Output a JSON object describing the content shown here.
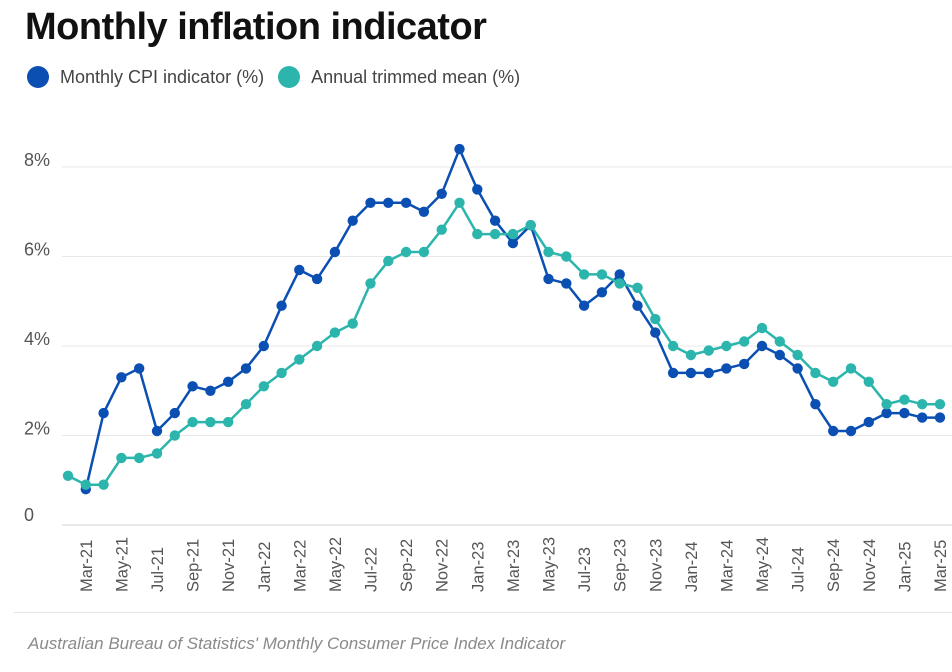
{
  "title": "Monthly inflation indicator",
  "legend": {
    "items": [
      {
        "label": "Monthly CPI indicator (%)",
        "color": "#0b4fb3"
      },
      {
        "label": "Annual trimmed mean (%)",
        "color": "#2bb5ac"
      }
    ]
  },
  "source": "Australian Bureau of Statistics' Monthly Consumer Price Index Indicator",
  "chart_data": {
    "type": "line",
    "title": "Monthly inflation indicator",
    "xlabel": "",
    "ylabel": "",
    "ylim": [
      0,
      8.5
    ],
    "yticks": [
      0,
      2,
      4,
      6,
      8
    ],
    "ytick_labels": [
      "0",
      "2%",
      "4%",
      "6%",
      "8%"
    ],
    "x": [
      "Feb-21",
      "Mar-21",
      "Apr-21",
      "May-21",
      "Jun-21",
      "Jul-21",
      "Aug-21",
      "Sep-21",
      "Oct-21",
      "Nov-21",
      "Dec-21",
      "Jan-22",
      "Feb-22",
      "Mar-22",
      "Apr-22",
      "May-22",
      "Jun-22",
      "Jul-22",
      "Aug-22",
      "Sep-22",
      "Oct-22",
      "Nov-22",
      "Dec-22",
      "Jan-23",
      "Feb-23",
      "Mar-23",
      "Apr-23",
      "May-23",
      "Jun-23",
      "Jul-23",
      "Aug-23",
      "Sep-23",
      "Oct-23",
      "Nov-23",
      "Dec-23",
      "Jan-24",
      "Feb-24",
      "Mar-24",
      "Apr-24",
      "May-24",
      "Jun-24",
      "Jul-24",
      "Aug-24",
      "Sep-24",
      "Oct-24",
      "Nov-24",
      "Dec-24",
      "Jan-25",
      "Feb-25",
      "Mar-25"
    ],
    "tick_labels": [
      "Mar-21",
      "May-21",
      "Jul-21",
      "Sep-21",
      "Nov-21",
      "Jan-22",
      "Mar-22",
      "May-22",
      "Jul-22",
      "Sep-22",
      "Nov-22",
      "Jan-23",
      "Mar-23",
      "May-23",
      "Jul-23",
      "Sep-23",
      "Nov-23",
      "Jan-24",
      "Mar-24",
      "May-24",
      "Jul-24",
      "Sep-24",
      "Nov-24",
      "Jan-25",
      "Mar-25"
    ],
    "grid": true,
    "series": [
      {
        "name": "Monthly CPI indicator (%)",
        "color": "#0b4fb3",
        "values": [
          null,
          0.8,
          2.5,
          3.3,
          3.5,
          2.1,
          2.5,
          3.1,
          3.0,
          3.2,
          3.5,
          4.0,
          4.9,
          5.7,
          5.5,
          6.1,
          6.8,
          7.2,
          7.2,
          7.2,
          7.0,
          7.4,
          8.4,
          7.5,
          6.8,
          6.3,
          6.7,
          5.5,
          5.4,
          4.9,
          5.2,
          5.6,
          4.9,
          4.3,
          3.4,
          3.4,
          3.4,
          3.5,
          3.6,
          4.0,
          3.8,
          3.5,
          2.7,
          2.1,
          2.1,
          2.3,
          2.5,
          2.5,
          2.4,
          2.4
        ]
      },
      {
        "name": "Annual trimmed mean (%)",
        "color": "#2bb5ac",
        "values": [
          1.1,
          0.9,
          0.9,
          1.5,
          1.5,
          1.6,
          2.0,
          2.3,
          2.3,
          2.3,
          2.7,
          3.1,
          3.4,
          3.7,
          4.0,
          4.3,
          4.5,
          5.4,
          5.9,
          6.1,
          6.1,
          6.6,
          7.2,
          6.5,
          6.5,
          6.5,
          6.7,
          6.1,
          6.0,
          5.6,
          5.6,
          5.4,
          5.3,
          4.6,
          4.0,
          3.8,
          3.9,
          4.0,
          4.1,
          4.4,
          4.1,
          3.8,
          3.4,
          3.2,
          3.5,
          3.2,
          2.7,
          2.8,
          2.7,
          2.7
        ]
      }
    ]
  }
}
